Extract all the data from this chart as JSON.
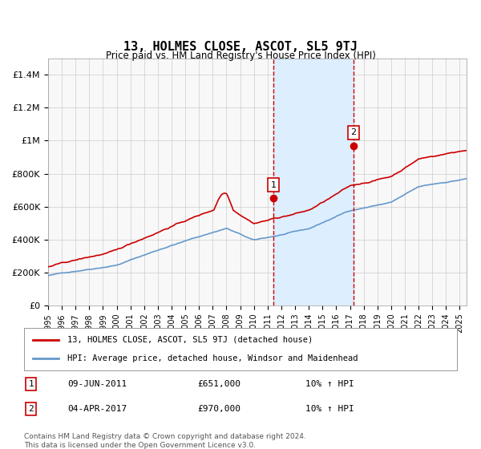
{
  "title": "13, HOLMES CLOSE, ASCOT, SL5 9TJ",
  "subtitle": "Price paid vs. HM Land Registry's House Price Index (HPI)",
  "ylabel_ticks": [
    "£0",
    "£200K",
    "£400K",
    "£600K",
    "£800K",
    "£1M",
    "£1.2M",
    "£1.4M"
  ],
  "ytick_values": [
    0,
    200000,
    400000,
    600000,
    800000,
    1000000,
    1200000,
    1400000
  ],
  "ylim": [
    0,
    1500000
  ],
  "xlim_start": 1995.0,
  "xlim_end": 2025.5,
  "transaction1": {
    "label": "1",
    "date": "09-JUN-2011",
    "year": 2011.44,
    "price": 651000,
    "hpi_note": "10% ↑ HPI"
  },
  "transaction2": {
    "label": "2",
    "date": "04-APR-2017",
    "year": 2017.25,
    "price": 970000,
    "hpi_note": "10% ↑ HPI"
  },
  "line_color_price": "#cc0000",
  "line_color_hpi": "#6699cc",
  "shade_color": "#ddeeff",
  "vline_color": "#cc0000",
  "legend_label_price": "13, HOLMES CLOSE, ASCOT, SL5 9TJ (detached house)",
  "legend_label_hpi": "HPI: Average price, detached house, Windsor and Maidenhead",
  "footer": "Contains HM Land Registry data © Crown copyright and database right 2024.\nThis data is licensed under the Open Government Licence v3.0.",
  "background_color": "#ffffff",
  "plot_bg_color": "#f8f8f8"
}
